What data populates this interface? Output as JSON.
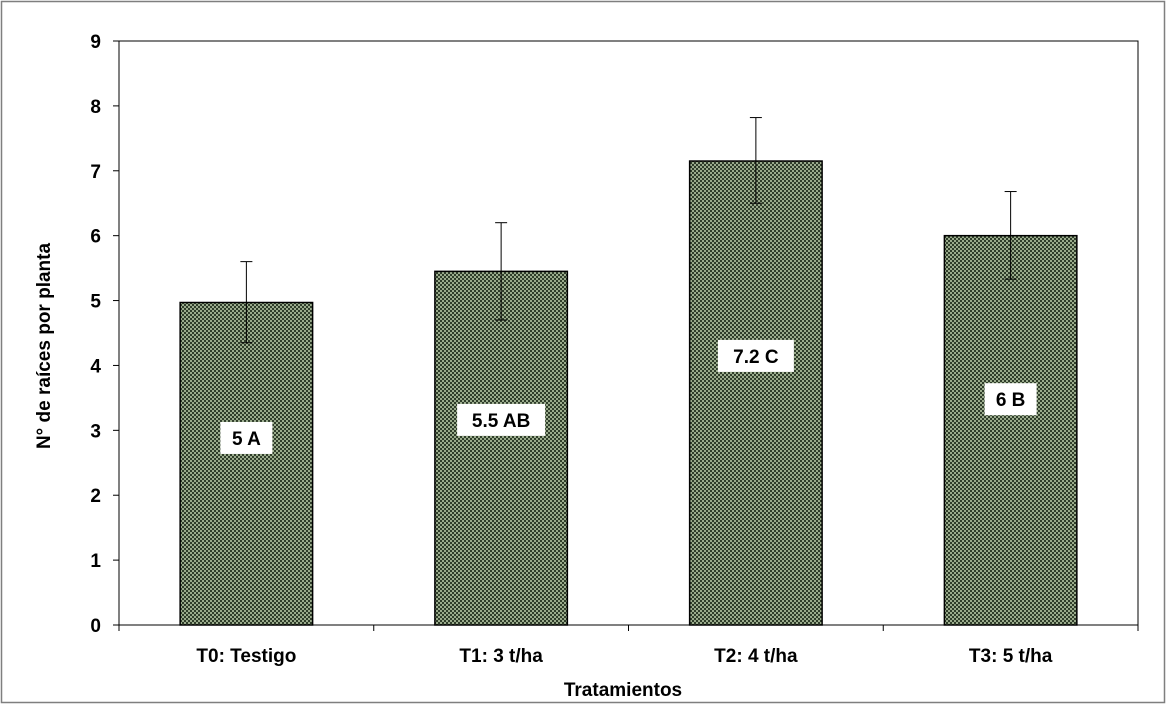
{
  "chart_data": {
    "type": "bar",
    "title": "",
    "xlabel": "Tratamientos",
    "ylabel": "N° de raíces por planta",
    "categories": [
      "T0: Testigo",
      "T1: 3 t/ha",
      "T2: 4 t/ha",
      "T3: 5 t/ha"
    ],
    "values": [
      4.97,
      5.45,
      7.15,
      6.0
    ],
    "error_bars": [
      {
        "low": 4.35,
        "high": 5.6
      },
      {
        "low": 4.7,
        "high": 6.2
      },
      {
        "low": 6.5,
        "high": 7.82
      },
      {
        "low": 5.33,
        "high": 6.68
      }
    ],
    "data_labels": [
      "5 A",
      "5.5 AB",
      "7.2 C",
      "6 B"
    ],
    "ylim": [
      0,
      9
    ],
    "yticks": [
      0,
      1,
      2,
      3,
      4,
      5,
      6,
      7,
      8,
      9
    ],
    "grid": false,
    "bar_color": "#9aab8c",
    "bar_pattern_color": "#2f3d2a"
  }
}
